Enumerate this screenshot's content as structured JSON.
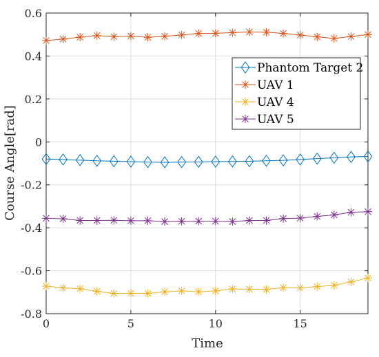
{
  "chart_data": {
    "type": "line",
    "xlabel": "Time",
    "ylabel": "Course Angle[rad]",
    "xlim": [
      0,
      19
    ],
    "ylim": [
      -0.8,
      0.6
    ],
    "xticks": [
      0,
      5,
      10,
      15
    ],
    "yticks": [
      -0.8,
      -0.6,
      -0.4,
      -0.2,
      0,
      0.2,
      0.4,
      0.6
    ],
    "xtick_labels": [
      "0",
      "5",
      "10",
      "15"
    ],
    "ytick_labels": [
      "-0.8",
      "-0.6",
      "-0.4",
      "-0.2",
      "0",
      "0.2",
      "0.4",
      "0.6"
    ],
    "grid": true,
    "legend_position": "top-right",
    "x": [
      0,
      1,
      2,
      3,
      4,
      5,
      6,
      7,
      8,
      9,
      10,
      11,
      12,
      13,
      14,
      15,
      16,
      17,
      18,
      19
    ],
    "series": [
      {
        "name": "Phantom Target 2",
        "color": "#0072BD",
        "marker": "diamond",
        "values": [
          -0.08,
          -0.082,
          -0.085,
          -0.088,
          -0.09,
          -0.092,
          -0.094,
          -0.095,
          -0.094,
          -0.093,
          -0.092,
          -0.091,
          -0.09,
          -0.088,
          -0.086,
          -0.082,
          -0.078,
          -0.074,
          -0.07,
          -0.068
        ]
      },
      {
        "name": "UAV 1",
        "color": "#D95319",
        "marker": "asterisk",
        "values": [
          0.472,
          0.479,
          0.488,
          0.495,
          0.49,
          0.493,
          0.487,
          0.492,
          0.498,
          0.505,
          0.506,
          0.509,
          0.512,
          0.511,
          0.505,
          0.498,
          0.489,
          0.482,
          0.491,
          0.5
        ]
      },
      {
        "name": "UAV 4",
        "color": "#EDB120",
        "marker": "asterisk",
        "values": [
          -0.672,
          -0.68,
          -0.684,
          -0.696,
          -0.706,
          -0.705,
          -0.706,
          -0.698,
          -0.694,
          -0.698,
          -0.694,
          -0.685,
          -0.686,
          -0.687,
          -0.679,
          -0.68,
          -0.674,
          -0.668,
          -0.652,
          -0.634
        ]
      },
      {
        "name": "UAV 5",
        "color": "#7E2F8E",
        "marker": "asterisk",
        "values": [
          -0.356,
          -0.358,
          -0.366,
          -0.366,
          -0.365,
          -0.367,
          -0.367,
          -0.371,
          -0.37,
          -0.369,
          -0.369,
          -0.371,
          -0.366,
          -0.366,
          -0.357,
          -0.355,
          -0.347,
          -0.34,
          -0.328,
          -0.325
        ]
      }
    ]
  }
}
